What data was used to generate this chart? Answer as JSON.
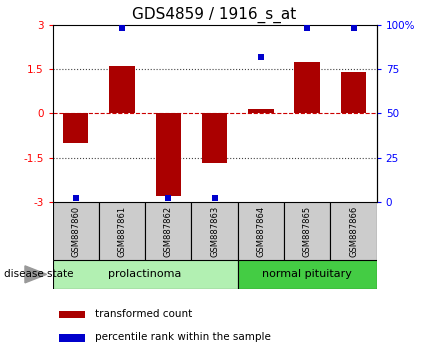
{
  "title": "GDS4859 / 1916_s_at",
  "samples": [
    "GSM887860",
    "GSM887861",
    "GSM887862",
    "GSM887863",
    "GSM887864",
    "GSM887865",
    "GSM887866"
  ],
  "transformed_count": [
    -1.0,
    1.6,
    -2.8,
    -1.7,
    0.15,
    1.75,
    1.4
  ],
  "percentile_rank": [
    2,
    98,
    2,
    2,
    82,
    98,
    98
  ],
  "groups": [
    {
      "label": "prolactinoma",
      "indices": [
        0,
        1,
        2,
        3
      ],
      "color": "#b2f0b2"
    },
    {
      "label": "normal pituitary",
      "indices": [
        4,
        5,
        6
      ],
      "color": "#44cc44"
    }
  ],
  "ylim_left": [
    -3,
    3
  ],
  "ylim_right": [
    0,
    100
  ],
  "yticks_left": [
    -3,
    -1.5,
    0,
    1.5,
    3
  ],
  "yticks_right": [
    0,
    25,
    50,
    75,
    100
  ],
  "bar_color": "#aa0000",
  "dot_color": "#0000cc",
  "bar_width": 0.55,
  "title_fontsize": 11,
  "label_fontsize": 7,
  "sample_box_color": "#cccccc",
  "hline_dotted_color": "#444444",
  "hline_zero_color": "#cc0000"
}
